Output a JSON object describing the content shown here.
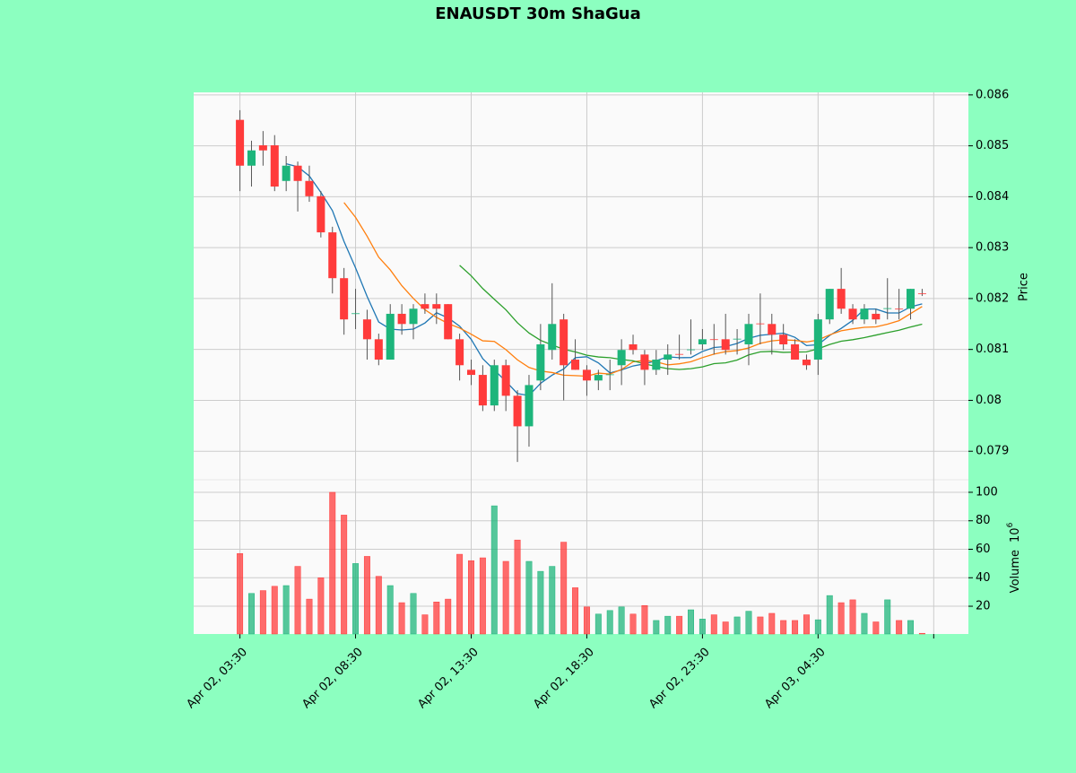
{
  "chart_data": {
    "type": "candlestick",
    "title": "ENAUSDT 30m ShaGua",
    "y_label": "Price",
    "volume_label": "Volume",
    "volume_exponent": "10",
    "volume_exponent_power": "6",
    "xticks": [
      0,
      10,
      20,
      30,
      40,
      50,
      60
    ],
    "xtick_labels": [
      "Apr 02, 03:30",
      "Apr 02, 08:30",
      "Apr 02, 13:30",
      "Apr 02, 18:30",
      "Apr 02, 23:30",
      "Apr 03, 04:30"
    ],
    "xlim": [
      -4,
      63
    ],
    "ylim": [
      0.07844,
      0.08605
    ],
    "yticks": [
      0.079,
      0.08,
      0.081,
      0.082,
      0.083,
      0.084,
      0.085,
      0.086
    ],
    "volume_ylim": [
      0.5,
      108.8
    ],
    "volume_yticks": [
      20,
      40,
      60,
      80,
      100
    ],
    "up_color": "#1db57b",
    "down_color": "#ff3b3b",
    "mav": [
      5,
      10,
      20
    ],
    "mav_colors": [
      "#1f77b4",
      "#ff7f0e",
      "#2ca02c"
    ],
    "grid": true,
    "open": [
      0.08551,
      0.08461,
      0.08501,
      0.08501,
      0.08431,
      0.08461,
      0.08431,
      0.08401,
      0.0833,
      0.0824,
      0.0817,
      0.08159,
      0.0812,
      0.0808,
      0.0817,
      0.0815,
      0.08189,
      0.08189,
      0.08189,
      0.0812,
      0.0806,
      0.0805,
      0.0799,
      0.08069,
      0.08009,
      0.07949,
      0.08039,
      0.08099,
      0.08159,
      0.0808,
      0.0806,
      0.08039,
      0.0805,
      0.08069,
      0.0811,
      0.0809,
      0.0806,
      0.0808,
      0.08091,
      0.08099,
      0.0811,
      0.0812,
      0.0812,
      0.0812,
      0.0811,
      0.08151,
      0.0815,
      0.08129,
      0.0811,
      0.0808,
      0.0808,
      0.08159,
      0.08219,
      0.0818,
      0.08159,
      0.0817,
      0.0818,
      0.0818,
      0.0818,
      0.0821
    ],
    "high": [
      0.0857,
      0.0851,
      0.08529,
      0.08521,
      0.0848,
      0.08469,
      0.08461,
      0.08411,
      0.08341,
      0.0826,
      0.08219,
      0.08178,
      0.08131,
      0.08189,
      0.08189,
      0.08189,
      0.0821,
      0.0821,
      0.08189,
      0.08131,
      0.0808,
      0.08069,
      0.0808,
      0.0808,
      0.0802,
      0.0805,
      0.0815,
      0.0823,
      0.0817,
      0.0812,
      0.08069,
      0.0806,
      0.0808,
      0.0812,
      0.08129,
      0.08099,
      0.08099,
      0.0811,
      0.08129,
      0.08159,
      0.0814,
      0.0815,
      0.0817,
      0.0814,
      0.0817,
      0.0821,
      0.0817,
      0.0815,
      0.0812,
      0.0809,
      0.0817,
      0.08219,
      0.0826,
      0.08189,
      0.08189,
      0.0818,
      0.0824,
      0.08219,
      0.08219,
      0.08219
    ],
    "low": [
      0.08411,
      0.0842,
      0.08461,
      0.08411,
      0.08411,
      0.08371,
      0.0839,
      0.0832,
      0.0821,
      0.08129,
      0.0814,
      0.0808,
      0.08069,
      0.0808,
      0.08129,
      0.0812,
      0.0817,
      0.0815,
      0.0812,
      0.08039,
      0.0803,
      0.07979,
      0.07979,
      0.07979,
      0.07879,
      0.07909,
      0.0802,
      0.0808,
      0.08,
      0.0806,
      0.08009,
      0.0802,
      0.0802,
      0.0803,
      0.0809,
      0.0803,
      0.0805,
      0.0805,
      0.0808,
      0.0809,
      0.08099,
      0.0809,
      0.0809,
      0.0809,
      0.08069,
      0.0811,
      0.0809,
      0.08099,
      0.0808,
      0.0806,
      0.0805,
      0.0815,
      0.0817,
      0.0815,
      0.0815,
      0.0815,
      0.08159,
      0.08159,
      0.08159,
      0.08205
    ],
    "close": [
      0.08461,
      0.08491,
      0.08491,
      0.0842,
      0.08461,
      0.08431,
      0.08401,
      0.0833,
      0.0824,
      0.08159,
      0.08171,
      0.0812,
      0.0808,
      0.0817,
      0.0815,
      0.0818,
      0.0818,
      0.0818,
      0.0812,
      0.08069,
      0.0805,
      0.0799,
      0.08069,
      0.08009,
      0.07949,
      0.0803,
      0.0811,
      0.0815,
      0.08069,
      0.0806,
      0.08039,
      0.0805,
      0.08051,
      0.08099,
      0.08099,
      0.0806,
      0.0808,
      0.0809,
      0.0809,
      0.081,
      0.0812,
      0.08119,
      0.08099,
      0.08121,
      0.0815,
      0.0815,
      0.08129,
      0.0811,
      0.0808,
      0.08069,
      0.08159,
      0.08219,
      0.0818,
      0.08159,
      0.0818,
      0.08159,
      0.08181,
      0.08179,
      0.08219,
      0.08209
    ],
    "volume": [
      57,
      29,
      31,
      34,
      34.5,
      48,
      25,
      40,
      100,
      84,
      50,
      55,
      41,
      34.5,
      22.5,
      29,
      14,
      23,
      25,
      56.5,
      52,
      54,
      90.5,
      51.5,
      66.5,
      51.5,
      44.5,
      48,
      65,
      33,
      19.5,
      14.5,
      17,
      19.5,
      14.5,
      20.5,
      10,
      13,
      13,
      17.5,
      11,
      14,
      9,
      12.5,
      16.5,
      12.5,
      15,
      10,
      10,
      14,
      10.5,
      27.5,
      22.5,
      24.5,
      15,
      9,
      24.5,
      10,
      10,
      1
    ]
  }
}
